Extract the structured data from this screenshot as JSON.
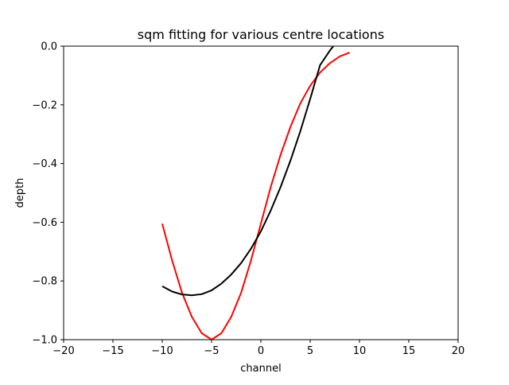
{
  "chart_data": {
    "type": "line",
    "title": "sqm fitting for various centre locations",
    "xlabel": "channel",
    "ylabel": "depth",
    "xlim": [
      -20,
      20
    ],
    "ylim": [
      -1.0,
      0.0
    ],
    "xticks": [
      -20,
      -15,
      -10,
      -5,
      0,
      5,
      10,
      15,
      20
    ],
    "xtick_labels": [
      "−20",
      "−15",
      "−10",
      "−5",
      "0",
      "5",
      "10",
      "15",
      "20"
    ],
    "yticks": [
      0.0,
      -0.2,
      -0.4,
      -0.6,
      -0.8,
      -1.0
    ],
    "ytick_labels": [
      "0.0",
      "−0.2",
      "−0.4",
      "−0.6",
      "−0.8",
      "−1.0"
    ],
    "grid": false,
    "legend": "none",
    "series": [
      {
        "color": "#ff0000",
        "x": [
          -10,
          -9,
          -8,
          -7,
          -6,
          -5,
          -4,
          -3,
          -2,
          -1,
          0,
          1,
          2,
          3,
          4,
          5,
          6,
          7,
          8,
          9
        ],
        "y": [
          -0.605,
          -0.73,
          -0.84,
          -0.922,
          -0.978,
          -1.0,
          -0.978,
          -0.922,
          -0.84,
          -0.73,
          -0.605,
          -0.48,
          -0.37,
          -0.275,
          -0.195,
          -0.135,
          -0.09,
          -0.058,
          -0.035,
          -0.022
        ]
      },
      {
        "color": "#000000",
        "x": [
          -10,
          -9,
          -8,
          -7,
          -6,
          -5,
          -4,
          -3,
          -2,
          -1,
          0,
          1,
          2,
          3,
          4,
          5,
          6,
          7,
          7.35
        ],
        "y": [
          -0.818,
          -0.836,
          -0.846,
          -0.849,
          -0.845,
          -0.832,
          -0.809,
          -0.778,
          -0.739,
          -0.69,
          -0.631,
          -0.56,
          -0.48,
          -0.39,
          -0.29,
          -0.18,
          -0.065,
          -0.015,
          0.0
        ]
      }
    ]
  }
}
